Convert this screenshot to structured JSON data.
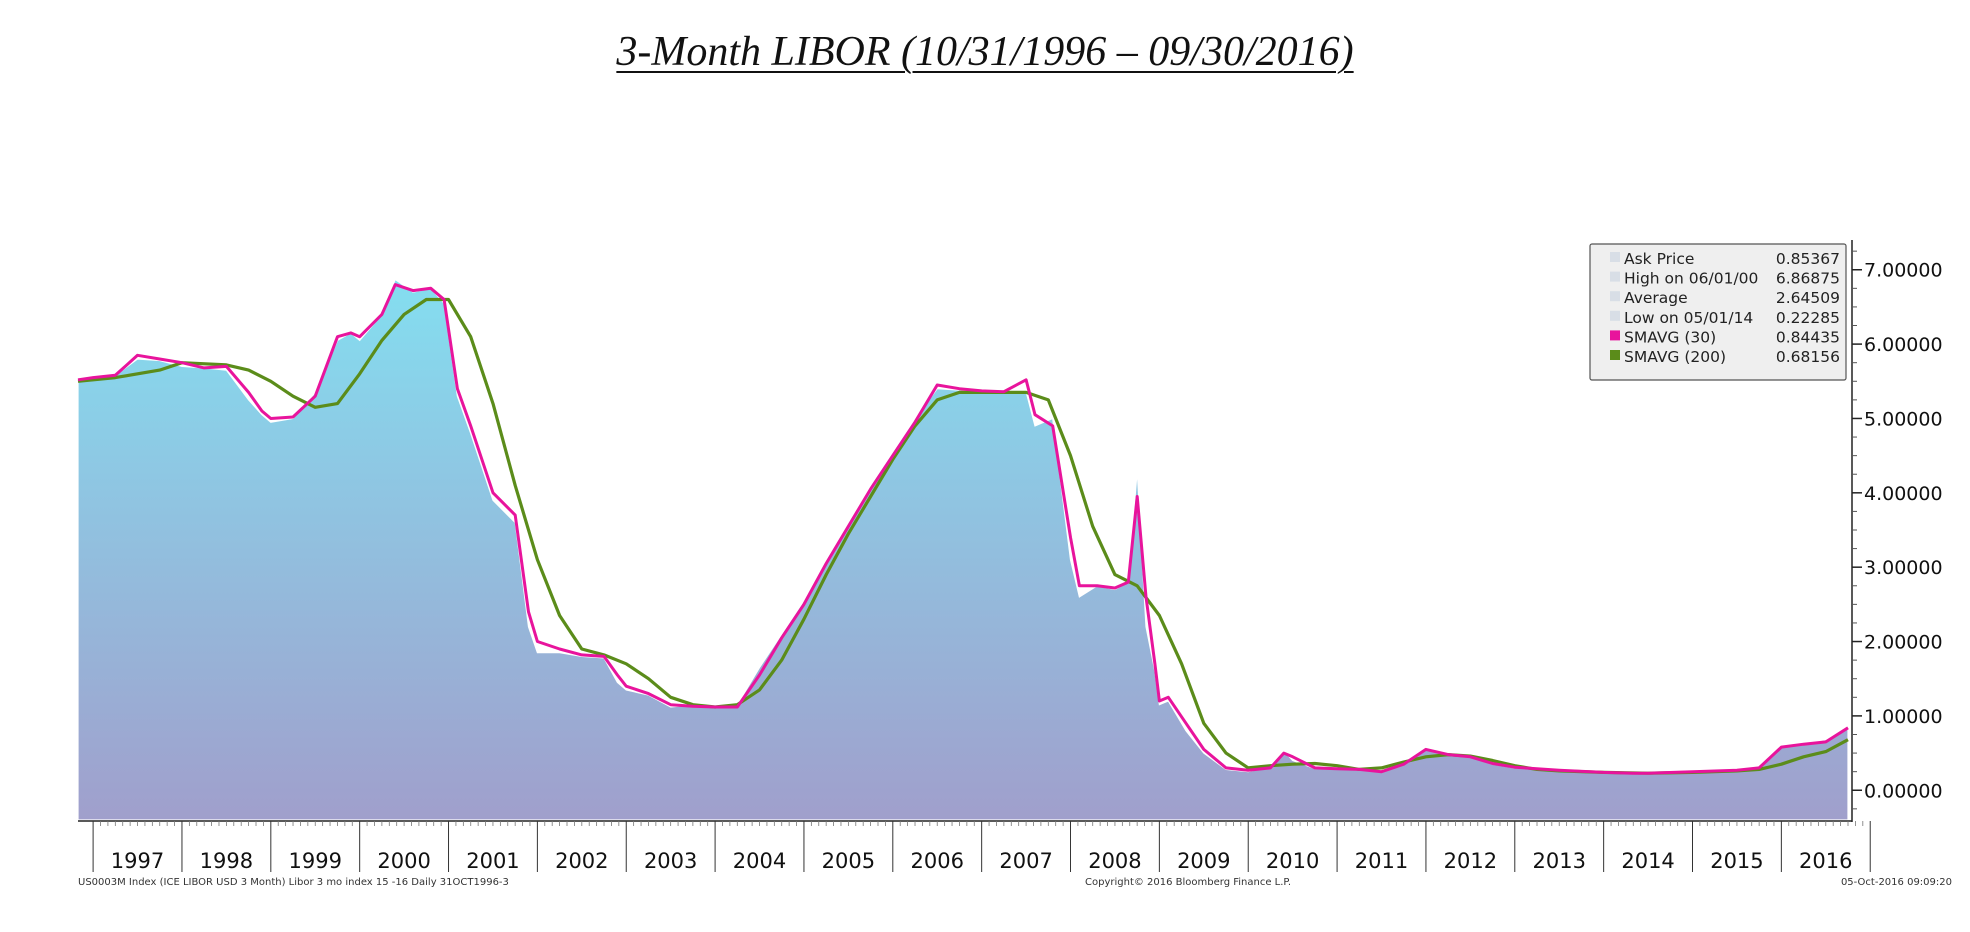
{
  "chart_data": {
    "type": "area",
    "title": "3-Month LIBOR (10/31/1996 – 09/30/2016)",
    "xlabel": "",
    "ylabel": "",
    "x_range": [
      1996.83,
      2016.75
    ],
    "ylim": [
      -0.4,
      7.4
    ],
    "y_ticks": [
      "7.00000",
      "6.00000",
      "5.00000",
      "4.00000",
      "3.00000",
      "2.00000",
      "1.00000",
      "0.00000"
    ],
    "y_tick_values": [
      7,
      6,
      5,
      4,
      3,
      2,
      1,
      0
    ],
    "x_labels": [
      "1997",
      "1998",
      "1999",
      "2000",
      "2001",
      "2002",
      "2003",
      "2004",
      "2005",
      "2006",
      "2007",
      "2008",
      "2009",
      "2010",
      "2011",
      "2012",
      "2013",
      "2014",
      "2015",
      "2016"
    ],
    "grid": false,
    "legend_position": "top-right",
    "series": [
      {
        "name": "Ask Price",
        "color": "#9ec9e4",
        "x": [
          1996.83,
          1997.0,
          1997.25,
          1997.5,
          1997.75,
          1998.0,
          1998.25,
          1998.5,
          1998.75,
          1998.9,
          1999.0,
          1999.25,
          1999.5,
          1999.75,
          1999.9,
          2000.0,
          2000.25,
          2000.4,
          2000.6,
          2000.8,
          2000.95,
          2001.1,
          2001.25,
          2001.5,
          2001.75,
          2001.9,
          2002.0,
          2002.25,
          2002.5,
          2002.75,
          2002.9,
          2003.0,
          2003.25,
          2003.5,
          2003.75,
          2004.0,
          2004.25,
          2004.5,
          2004.75,
          2005.0,
          2005.25,
          2005.5,
          2005.75,
          2006.0,
          2006.25,
          2006.5,
          2006.75,
          2007.0,
          2007.25,
          2007.5,
          2007.6,
          2007.8,
          2008.0,
          2008.1,
          2008.3,
          2008.5,
          2008.65,
          2008.75,
          2008.85,
          2008.95,
          2009.0,
          2009.1,
          2009.3,
          2009.5,
          2009.75,
          2010.0,
          2010.25,
          2010.4,
          2010.5,
          2010.75,
          2011.0,
          2011.25,
          2011.5,
          2011.75,
          2012.0,
          2012.25,
          2012.5,
          2012.75,
          2013.0,
          2013.5,
          2014.0,
          2014.33,
          2014.5,
          2015.0,
          2015.5,
          2015.75,
          2016.0,
          2016.25,
          2016.5,
          2016.75
        ],
        "values": [
          5.5,
          5.55,
          5.58,
          5.8,
          5.78,
          5.7,
          5.68,
          5.65,
          5.25,
          5.05,
          4.95,
          5.0,
          5.35,
          6.05,
          6.15,
          6.05,
          6.4,
          6.87,
          6.7,
          6.75,
          6.55,
          5.3,
          4.8,
          3.9,
          3.6,
          2.2,
          1.85,
          1.85,
          1.8,
          1.78,
          1.45,
          1.35,
          1.28,
          1.12,
          1.15,
          1.12,
          1.15,
          1.65,
          2.1,
          2.55,
          3.1,
          3.6,
          4.1,
          4.55,
          5.0,
          5.4,
          5.38,
          5.36,
          5.35,
          5.36,
          4.9,
          5.0,
          3.1,
          2.6,
          2.75,
          2.7,
          2.8,
          4.3,
          2.2,
          1.6,
          1.15,
          1.2,
          0.8,
          0.5,
          0.28,
          0.25,
          0.32,
          0.53,
          0.4,
          0.29,
          0.3,
          0.28,
          0.25,
          0.38,
          0.55,
          0.47,
          0.45,
          0.35,
          0.3,
          0.27,
          0.24,
          0.22,
          0.23,
          0.25,
          0.28,
          0.32,
          0.6,
          0.63,
          0.68,
          0.85
        ]
      },
      {
        "name": "SMAVG (30)",
        "color": "#e8149c",
        "x": [
          1996.83,
          1997.0,
          1997.25,
          1997.5,
          1997.75,
          1998.0,
          1998.25,
          1998.5,
          1998.75,
          1998.9,
          1999.0,
          1999.25,
          1999.5,
          1999.75,
          1999.9,
          2000.0,
          2000.25,
          2000.4,
          2000.6,
          2000.8,
          2000.95,
          2001.1,
          2001.25,
          2001.5,
          2001.75,
          2001.9,
          2002.0,
          2002.25,
          2002.5,
          2002.75,
          2002.9,
          2003.0,
          2003.25,
          2003.5,
          2003.75,
          2004.0,
          2004.25,
          2004.5,
          2004.75,
          2005.0,
          2005.25,
          2005.5,
          2005.75,
          2006.0,
          2006.25,
          2006.5,
          2006.75,
          2007.0,
          2007.25,
          2007.5,
          2007.6,
          2007.8,
          2008.0,
          2008.1,
          2008.3,
          2008.5,
          2008.65,
          2008.75,
          2008.85,
          2008.95,
          2009.0,
          2009.1,
          2009.3,
          2009.5,
          2009.75,
          2010.0,
          2010.25,
          2010.4,
          2010.5,
          2010.75,
          2011.0,
          2011.25,
          2011.5,
          2011.75,
          2012.0,
          2012.25,
          2012.5,
          2012.75,
          2013.0,
          2013.5,
          2014.0,
          2014.33,
          2014.5,
          2015.0,
          2015.5,
          2015.75,
          2016.0,
          2016.25,
          2016.5,
          2016.75
        ],
        "values": [
          5.52,
          5.55,
          5.58,
          5.85,
          5.8,
          5.75,
          5.68,
          5.7,
          5.35,
          5.1,
          5.0,
          5.02,
          5.3,
          6.1,
          6.15,
          6.1,
          6.4,
          6.8,
          6.72,
          6.75,
          6.6,
          5.4,
          4.9,
          4.0,
          3.7,
          2.4,
          2.0,
          1.9,
          1.82,
          1.8,
          1.55,
          1.4,
          1.3,
          1.15,
          1.13,
          1.12,
          1.12,
          1.55,
          2.05,
          2.5,
          3.05,
          3.55,
          4.05,
          4.5,
          4.95,
          5.45,
          5.4,
          5.37,
          5.36,
          5.52,
          5.05,
          4.9,
          3.4,
          2.75,
          2.75,
          2.72,
          2.8,
          3.95,
          2.6,
          1.7,
          1.2,
          1.25,
          0.9,
          0.55,
          0.3,
          0.27,
          0.3,
          0.5,
          0.45,
          0.3,
          0.29,
          0.28,
          0.25,
          0.35,
          0.55,
          0.48,
          0.45,
          0.36,
          0.31,
          0.27,
          0.24,
          0.23,
          0.23,
          0.25,
          0.27,
          0.3,
          0.58,
          0.62,
          0.65,
          0.84
        ]
      },
      {
        "name": "SMAVG (200)",
        "color": "#5b8c1a",
        "x": [
          1996.83,
          1997.25,
          1997.75,
          1998.0,
          1998.5,
          1998.75,
          1999.0,
          1999.25,
          1999.5,
          1999.75,
          2000.0,
          2000.25,
          2000.5,
          2000.75,
          2001.0,
          2001.25,
          2001.5,
          2001.75,
          2002.0,
          2002.25,
          2002.5,
          2002.75,
          2003.0,
          2003.25,
          2003.5,
          2003.75,
          2004.0,
          2004.25,
          2004.5,
          2004.75,
          2005.0,
          2005.25,
          2005.5,
          2005.75,
          2006.0,
          2006.25,
          2006.5,
          2006.75,
          2007.0,
          2007.25,
          2007.5,
          2007.75,
          2008.0,
          2008.25,
          2008.5,
          2008.75,
          2009.0,
          2009.25,
          2009.5,
          2009.75,
          2010.0,
          2010.25,
          2010.5,
          2010.75,
          2011.0,
          2011.25,
          2011.5,
          2011.75,
          2012.0,
          2012.25,
          2012.5,
          2012.75,
          2013.0,
          2013.25,
          2013.5,
          2014.0,
          2014.5,
          2015.0,
          2015.5,
          2015.75,
          2016.0,
          2016.25,
          2016.5,
          2016.75
        ],
        "values": [
          5.5,
          5.55,
          5.65,
          5.75,
          5.72,
          5.65,
          5.5,
          5.3,
          5.15,
          5.2,
          5.6,
          6.05,
          6.4,
          6.6,
          6.6,
          6.1,
          5.2,
          4.1,
          3.1,
          2.35,
          1.9,
          1.82,
          1.7,
          1.5,
          1.25,
          1.15,
          1.12,
          1.15,
          1.35,
          1.75,
          2.3,
          2.9,
          3.45,
          3.95,
          4.45,
          4.9,
          5.25,
          5.35,
          5.35,
          5.35,
          5.35,
          5.25,
          4.5,
          3.55,
          2.9,
          2.75,
          2.35,
          1.7,
          0.9,
          0.5,
          0.3,
          0.33,
          0.35,
          0.36,
          0.33,
          0.28,
          0.3,
          0.38,
          0.45,
          0.48,
          0.46,
          0.4,
          0.33,
          0.28,
          0.26,
          0.24,
          0.23,
          0.24,
          0.26,
          0.28,
          0.35,
          0.45,
          0.52,
          0.68
        ]
      }
    ],
    "legend": [
      {
        "label": "Ask Price",
        "value": "0.85367",
        "marker": "#d8dee6"
      },
      {
        "label": "High on 06/01/00",
        "value": "6.86875",
        "marker": "#d8dee6"
      },
      {
        "label": "Average",
        "value": "2.64509",
        "marker": "#d8dee6"
      },
      {
        "label": "Low on 05/01/14",
        "value": "0.22285",
        "marker": "#d8dee6"
      },
      {
        "label": "SMAVG (30)",
        "value": "0.84435",
        "marker": "#e8149c"
      },
      {
        "label": "SMAVG (200)",
        "value": "0.68156",
        "marker": "#5b8c1a"
      }
    ],
    "area_gradient": [
      "#84def0",
      "#a09fcc"
    ],
    "footer_left": "US0003M Index (ICE LIBOR USD 3 Month) Libor 3 mo index 15 -16  Daily 31OCT1996-3",
    "footer_center": "Copyright© 2016 Bloomberg Finance L.P.",
    "footer_right": "05-Oct-2016 09:09:20"
  }
}
